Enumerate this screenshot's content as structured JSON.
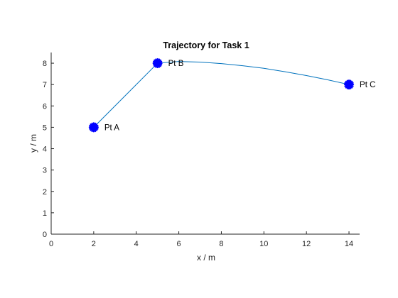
{
  "chart_data": {
    "type": "line",
    "title": "Trajectory for Task 1",
    "xlabel": "x / m",
    "ylabel": "y / m",
    "xlim": [
      0,
      14.5
    ],
    "ylim": [
      0,
      8.5
    ],
    "xticks": [
      0,
      2,
      4,
      6,
      8,
      10,
      12,
      14
    ],
    "yticks": [
      0,
      1,
      2,
      3,
      4,
      5,
      6,
      7,
      8
    ],
    "grid": false,
    "colors": {
      "line": "#0072BD",
      "marker": "#0000FF",
      "axis": "#262626"
    },
    "series": [
      {
        "values": [
          {
            "x": 2,
            "y": 5
          },
          {
            "x": 5,
            "y": 8
          },
          {
            "x": 6,
            "y": 8.08
          },
          {
            "x": 7,
            "y": 8.05
          },
          {
            "x": 8,
            "y": 7.98
          },
          {
            "x": 9,
            "y": 7.88
          },
          {
            "x": 10,
            "y": 7.76
          },
          {
            "x": 11,
            "y": 7.6
          },
          {
            "x": 12,
            "y": 7.42
          },
          {
            "x": 13,
            "y": 7.22
          },
          {
            "x": 14,
            "y": 7
          }
        ]
      }
    ],
    "points": [
      {
        "label": "Pt A",
        "x": 2,
        "y": 5
      },
      {
        "label": "Pt B",
        "x": 5,
        "y": 8
      },
      {
        "label": "Pt C",
        "x": 14,
        "y": 7
      }
    ]
  }
}
